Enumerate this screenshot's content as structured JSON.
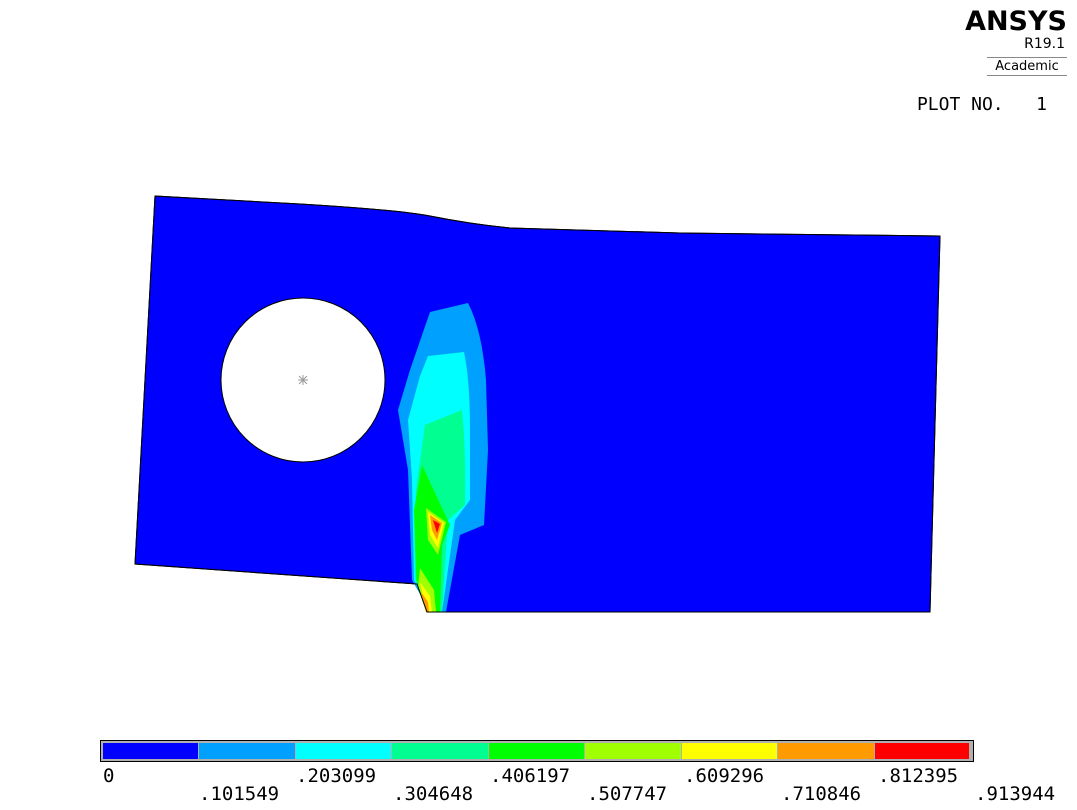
{
  "logo": {
    "brand": "ANSYS",
    "version": "R19.1",
    "edition": "Academic"
  },
  "plot_label": {
    "text": "PLOT NO.",
    "number": "1"
  },
  "contour_legend": {
    "bands": [
      {
        "color": "#0000ff"
      },
      {
        "color": "#00a0ff"
      },
      {
        "color": "#00ffff"
      },
      {
        "color": "#00ff90"
      },
      {
        "color": "#00ff00"
      },
      {
        "color": "#a0ff00"
      },
      {
        "color": "#ffff00"
      },
      {
        "color": "#ff9a00"
      },
      {
        "color": "#ff0000"
      }
    ],
    "labels": [
      "0",
      ".101549",
      ".203099",
      ".304648",
      ".406197",
      ".507747",
      ".609296",
      ".710846",
      ".812395",
      ".913944"
    ]
  },
  "hole_center_marker": "asterisk"
}
